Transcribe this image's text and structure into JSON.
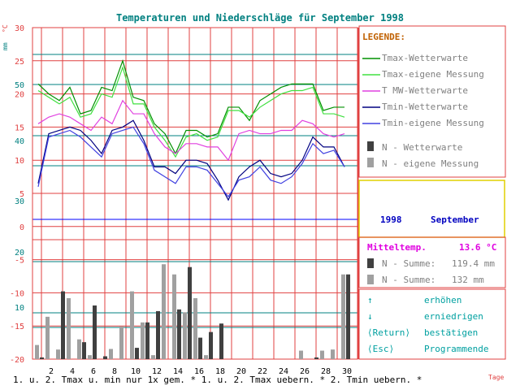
{
  "title": "Temperaturen und Niederschläge für September 1998",
  "axis": {
    "temp_unit": "°C",
    "precip_unit": "mm",
    "temp_ticks": [
      "30",
      "25",
      "20",
      "15",
      "10",
      "5",
      "0",
      "-5",
      "-10",
      "-15",
      "-20"
    ],
    "precip_ticks": [
      "50",
      "40",
      "30",
      "20",
      "10"
    ],
    "x_unit": "Tage"
  },
  "legend": {
    "heading": "LEGENDE:",
    "items": [
      {
        "label": "Tmax-Wetterwarte",
        "color": "#009000",
        "kind": "line"
      },
      {
        "label": "Tmax-eigene Messung",
        "color": "#40e040",
        "kind": "line"
      },
      {
        "label": "T MW-Wetterwarte",
        "color": "#e040e0",
        "kind": "line"
      },
      {
        "label": "Tmin-Wetterwarte",
        "color": "#000080",
        "kind": "line"
      },
      {
        "label": "Tmin-eigene Messung",
        "color": "#4040e0",
        "kind": "line"
      },
      {
        "label": "N - Wetterwarte",
        "color": "#404040",
        "kind": "bar"
      },
      {
        "label": "N - eigene Messung",
        "color": "#a0a0a0",
        "kind": "bar"
      }
    ]
  },
  "period": {
    "year": "1998",
    "month": "September"
  },
  "stats": {
    "mittel_label": "Mitteltemp.",
    "mittel_value": "13.6 °C",
    "n_summe_1_label": "N - Summe:",
    "n_summe_1_value": "119.4 mm",
    "n_summe_2_label": "N - Summe:",
    "n_summe_2_value": "132   mm"
  },
  "controls": [
    {
      "key": "↑",
      "action": "erhöhen"
    },
    {
      "key": "↓",
      "action": "erniedrigen"
    },
    {
      "key": "⟨Return⟩",
      "action": "bestätigen"
    },
    {
      "key": "⟨Esc⟩",
      "action": "Programmende"
    }
  ],
  "footer": "1. u. 2. Tmax u. min nur 1x gem. * 1. u. 2. Tmax uebern. * 2. Tmin uebern. *",
  "colors": {
    "grid_red": "#e04040",
    "grid_teal": "#008080",
    "title": "#008080",
    "legend_head": "#c06000",
    "stats_magenta": "#e000e0",
    "controls_teal": "#00a0a0",
    "period_blue": "#0000c0",
    "border_yellow": "#e0d000"
  },
  "chart_data": {
    "type": "line",
    "x": [
      1,
      2,
      3,
      4,
      5,
      6,
      7,
      8,
      9,
      10,
      11,
      12,
      13,
      14,
      15,
      16,
      17,
      18,
      19,
      20,
      21,
      22,
      23,
      24,
      25,
      26,
      27,
      28,
      29,
      30
    ],
    "x_tick_labels": [
      "2",
      "4",
      "6",
      "8",
      "10",
      "12",
      "14",
      "16",
      "18",
      "20",
      "22",
      "24",
      "26",
      "28",
      "30"
    ],
    "temp_ylim": [
      -20,
      30
    ],
    "precip_ylim": [
      0,
      50
    ],
    "series": [
      {
        "name": "Tmax-Wetterwarte",
        "axis": "temp",
        "color": "#009000",
        "values": [
          21.5,
          20,
          19,
          21,
          17,
          17.5,
          21,
          20.5,
          25,
          19.5,
          19,
          15.5,
          14,
          11,
          14.5,
          14.5,
          13.5,
          14,
          18,
          18,
          16,
          19,
          20,
          21,
          21.5,
          21.5,
          21.5,
          17.5,
          18,
          18
        ]
      },
      {
        "name": "Tmax-eigene Messung",
        "axis": "temp",
        "color": "#40e040",
        "values": [
          20.5,
          19.5,
          18.5,
          19.5,
          16.5,
          17,
          20,
          19.5,
          24,
          18.5,
          18.5,
          15,
          13,
          10.5,
          13.5,
          14,
          13,
          13.5,
          17.5,
          17.5,
          16.5,
          18,
          19,
          20,
          20.5,
          20.5,
          21,
          17,
          17,
          16.5
        ]
      },
      {
        "name": "T MW-Wetterwarte",
        "axis": "temp",
        "color": "#e040e0",
        "values": [
          15.5,
          16.5,
          17,
          16.5,
          15.5,
          14.5,
          16.5,
          15.5,
          19,
          17,
          17,
          14,
          12,
          11,
          12.5,
          12.5,
          12,
          12,
          10,
          14,
          14.5,
          14,
          14,
          14.5,
          14.5,
          16,
          15.5,
          14,
          13.5,
          14
        ]
      },
      {
        "name": "Tmin-Wetterwarte",
        "axis": "temp",
        "color": "#000080",
        "values": [
          6.5,
          14,
          14.5,
          15,
          14.5,
          13,
          11,
          14.5,
          15,
          16,
          13,
          9,
          9,
          8,
          10,
          10,
          9.5,
          7,
          4,
          7.5,
          9,
          10,
          8,
          7.5,
          8,
          10,
          13.5,
          12,
          12,
          9
        ]
      },
      {
        "name": "Tmin-eigene Messung",
        "axis": "temp",
        "color": "#4040e0",
        "values": [
          6,
          13.5,
          14,
          14.5,
          13.5,
          12,
          10.5,
          14,
          14.5,
          15,
          12.5,
          8.5,
          7.5,
          6.5,
          9,
          9,
          8.5,
          6.5,
          4.5,
          7,
          7.5,
          9,
          7,
          6.5,
          7.5,
          9.5,
          12.5,
          11,
          11.5,
          9
        ]
      }
    ],
    "bars": [
      {
        "name": "N - Wetterwarte",
        "axis": "precip",
        "color": "#404040",
        "values": [
          0.3,
          0,
          12,
          0,
          3,
          9.5,
          0.5,
          0,
          0,
          2,
          6.5,
          8.5,
          0,
          8.8,
          16.3,
          3.8,
          4.8,
          6.3,
          0,
          0,
          0,
          0,
          0,
          0,
          0,
          0,
          0.3,
          0,
          0,
          15
        ]
      },
      {
        "name": "N - eigene Messung",
        "axis": "precip",
        "color": "#a0a0a0",
        "values": [
          2.5,
          7.5,
          1.7,
          10.8,
          3.5,
          0.7,
          0,
          1.8,
          5.8,
          12,
          6.5,
          0.7,
          16.8,
          15,
          8.3,
          10.8,
          0.7,
          0,
          0,
          0,
          0,
          0,
          0,
          0,
          0,
          1.5,
          0,
          1.5,
          1.7,
          15
        ]
      }
    ]
  }
}
